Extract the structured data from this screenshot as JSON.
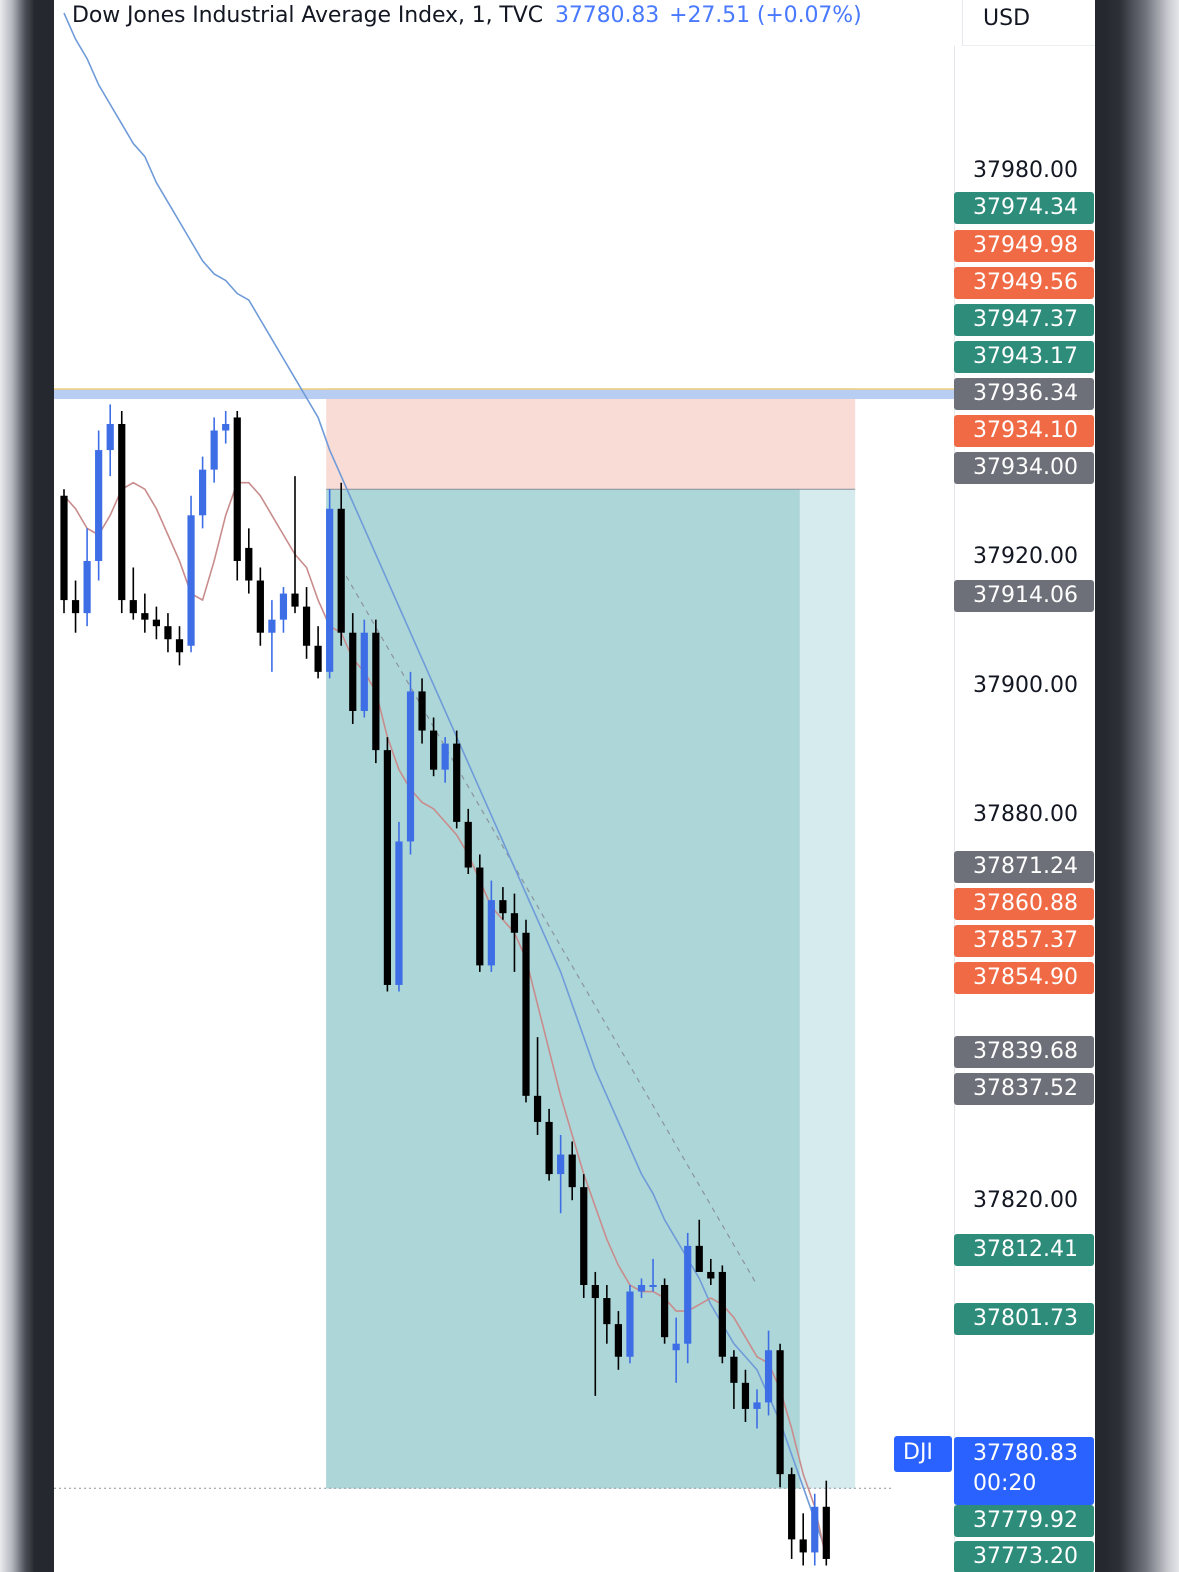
{
  "header": {
    "symbol_label": "Dow Jones Industrial Average Index, 1, TVC",
    "last_value": "37780.83",
    "change": "+27.51 (+0.07%)",
    "currency": "USD"
  },
  "colors": {
    "bull": "#3d6ee6",
    "bear": "#000000",
    "ema_fast": "#c98c8c",
    "ema_slow": "#6f9bd8",
    "stop_zone": "#f9dcd6",
    "target_zone": "#add6d8",
    "target_zone_light": "#d5ebee",
    "green_tag": "#2e8c7b",
    "orange_tag": "#f06b45",
    "gray_tag": "#6e7079",
    "blue_tag": "#2962ff"
  },
  "chart_data": {
    "type": "candlestick",
    "symbol": "DJI",
    "interval": "1",
    "ylim": [
      37768,
      38009
    ],
    "y_ticks": [
      "37980.00",
      "37920.00",
      "37900.00",
      "37880.00",
      "37820.00"
    ],
    "price_tags": [
      {
        "value": "37974.34",
        "kind": "green"
      },
      {
        "value": "37949.98",
        "kind": "orange"
      },
      {
        "value": "37949.56",
        "kind": "orange"
      },
      {
        "value": "37947.37",
        "kind": "green"
      },
      {
        "value": "37943.17",
        "kind": "green"
      },
      {
        "value": "37936.34",
        "kind": "gray"
      },
      {
        "value": "37934.10",
        "kind": "orange"
      },
      {
        "value": "37934.00",
        "kind": "gray"
      },
      {
        "value": "37914.06",
        "kind": "gray"
      },
      {
        "value": "37871.24",
        "kind": "gray"
      },
      {
        "value": "37860.88",
        "kind": "orange"
      },
      {
        "value": "37857.37",
        "kind": "orange"
      },
      {
        "value": "37854.90",
        "kind": "orange"
      },
      {
        "value": "37839.68",
        "kind": "gray"
      },
      {
        "value": "37837.52",
        "kind": "gray"
      },
      {
        "value": "37812.41",
        "kind": "green"
      },
      {
        "value": "37801.73",
        "kind": "green"
      },
      {
        "value": "37779.92",
        "kind": "green"
      },
      {
        "value": "37773.20",
        "kind": "green"
      }
    ],
    "last_price": {
      "badge": "DJI",
      "value": "37780.83",
      "countdown": "00:20"
    },
    "horizontal_line": 37948.6,
    "short_position": {
      "entry": 37934.0,
      "stop": 37949.5,
      "target": 37780.8
    },
    "candles": [
      {
        "o": 37933,
        "h": 37934,
        "l": 37915,
        "c": 37917
      },
      {
        "o": 37917,
        "h": 37920,
        "l": 37912,
        "c": 37915
      },
      {
        "o": 37915,
        "h": 37928,
        "l": 37913,
        "c": 37923
      },
      {
        "o": 37923,
        "h": 37943,
        "l": 37920,
        "c": 37940
      },
      {
        "o": 37940,
        "h": 37947,
        "l": 37936,
        "c": 37944
      },
      {
        "o": 37944,
        "h": 37946,
        "l": 37915,
        "c": 37917
      },
      {
        "o": 37917,
        "h": 37922,
        "l": 37914,
        "c": 37915
      },
      {
        "o": 37915,
        "h": 37918,
        "l": 37912,
        "c": 37914
      },
      {
        "o": 37914,
        "h": 37916,
        "l": 37911,
        "c": 37913
      },
      {
        "o": 37913,
        "h": 37915,
        "l": 37909,
        "c": 37911
      },
      {
        "o": 37911,
        "h": 37913,
        "l": 37907,
        "c": 37909
      },
      {
        "o": 37910,
        "h": 37933,
        "l": 37909,
        "c": 37930
      },
      {
        "o": 37930,
        "h": 37939,
        "l": 37928,
        "c": 37937
      },
      {
        "o": 37937,
        "h": 37945,
        "l": 37935,
        "c": 37943
      },
      {
        "o": 37943,
        "h": 37946,
        "l": 37941,
        "c": 37944
      },
      {
        "o": 37945,
        "h": 37946,
        "l": 37920,
        "c": 37923
      },
      {
        "o": 37925,
        "h": 37928,
        "l": 37918,
        "c": 37920
      },
      {
        "o": 37920,
        "h": 37922,
        "l": 37910,
        "c": 37912
      },
      {
        "o": 37912,
        "h": 37917,
        "l": 37906,
        "c": 37914
      },
      {
        "o": 37914,
        "h": 37919,
        "l": 37912,
        "c": 37918
      },
      {
        "o": 37918,
        "h": 37936,
        "l": 37915,
        "c": 37916
      },
      {
        "o": 37916,
        "h": 37919,
        "l": 37908,
        "c": 37910
      },
      {
        "o": 37910,
        "h": 37913,
        "l": 37905,
        "c": 37906
      },
      {
        "o": 37906,
        "h": 37934,
        "l": 37905,
        "c": 37931
      },
      {
        "o": 37931,
        "h": 37935,
        "l": 37910,
        "c": 37912
      },
      {
        "o": 37912,
        "h": 37915,
        "l": 37898,
        "c": 37900
      },
      {
        "o": 37900,
        "h": 37914,
        "l": 37899,
        "c": 37912
      },
      {
        "o": 37912,
        "h": 37914,
        "l": 37892,
        "c": 37894
      },
      {
        "o": 37894,
        "h": 37896,
        "l": 37857,
        "c": 37858
      },
      {
        "o": 37858,
        "h": 37883,
        "l": 37857,
        "c": 37880
      },
      {
        "o": 37880,
        "h": 37906,
        "l": 37878,
        "c": 37903
      },
      {
        "o": 37903,
        "h": 37905,
        "l": 37895,
        "c": 37897
      },
      {
        "o": 37897,
        "h": 37899,
        "l": 37890,
        "c": 37891
      },
      {
        "o": 37891,
        "h": 37896,
        "l": 37889,
        "c": 37895
      },
      {
        "o": 37895,
        "h": 37897,
        "l": 37882,
        "c": 37883
      },
      {
        "o": 37883,
        "h": 37885,
        "l": 37875,
        "c": 37876
      },
      {
        "o": 37876,
        "h": 37878,
        "l": 37860,
        "c": 37861
      },
      {
        "o": 37861,
        "h": 37874,
        "l": 37860,
        "c": 37871
      },
      {
        "o": 37871,
        "h": 37873,
        "l": 37868,
        "c": 37869
      },
      {
        "o": 37869,
        "h": 37872,
        "l": 37860,
        "c": 37866
      },
      {
        "o": 37866,
        "h": 37868,
        "l": 37840,
        "c": 37841
      },
      {
        "o": 37841,
        "h": 37850,
        "l": 37835,
        "c": 37837
      },
      {
        "o": 37837,
        "h": 37839,
        "l": 37828,
        "c": 37829
      },
      {
        "o": 37829,
        "h": 37835,
        "l": 37823,
        "c": 37832
      },
      {
        "o": 37832,
        "h": 37834,
        "l": 37825,
        "c": 37827
      },
      {
        "o": 37827,
        "h": 37829,
        "l": 37810,
        "c": 37812
      },
      {
        "o": 37812,
        "h": 37814,
        "l": 37795,
        "c": 37810
      },
      {
        "o": 37810,
        "h": 37812,
        "l": 37803,
        "c": 37806
      },
      {
        "o": 37806,
        "h": 37808,
        "l": 37799,
        "c": 37801
      },
      {
        "o": 37801,
        "h": 37812,
        "l": 37800,
        "c": 37811
      },
      {
        "o": 37811,
        "h": 37813,
        "l": 37810,
        "c": 37812
      },
      {
        "o": 37812,
        "h": 37816,
        "l": 37811,
        "c": 37812
      },
      {
        "o": 37812,
        "h": 37813,
        "l": 37803,
        "c": 37804
      },
      {
        "o": 37802,
        "h": 37807,
        "l": 37797,
        "c": 37803
      },
      {
        "o": 37803,
        "h": 37820,
        "l": 37800,
        "c": 37818
      },
      {
        "o": 37818,
        "h": 37822,
        "l": 37814,
        "c": 37814
      },
      {
        "o": 37814,
        "h": 37816,
        "l": 37812,
        "c": 37813
      },
      {
        "o": 37814,
        "h": 37815,
        "l": 37800,
        "c": 37801
      },
      {
        "o": 37801,
        "h": 37802,
        "l": 37793,
        "c": 37797
      },
      {
        "o": 37797,
        "h": 37799,
        "l": 37791,
        "c": 37793
      },
      {
        "o": 37793,
        "h": 37796,
        "l": 37790,
        "c": 37794
      },
      {
        "o": 37794,
        "h": 37805,
        "l": 37792,
        "c": 37802
      },
      {
        "o": 37802,
        "h": 37803,
        "l": 37781,
        "c": 37783
      },
      {
        "o": 37783,
        "h": 37784,
        "l": 37770,
        "c": 37773
      },
      {
        "o": 37773,
        "h": 37777,
        "l": 37769,
        "c": 37771
      },
      {
        "o": 37771,
        "h": 37780,
        "l": 37769,
        "c": 37778
      },
      {
        "o": 37778,
        "h": 37782,
        "l": 37769,
        "c": 37770
      }
    ],
    "ema_fast": [
      37933,
      37931,
      37928,
      37927,
      37930,
      37934,
      37935,
      37934,
      37931,
      37927,
      37923,
      37918,
      37917,
      37923,
      37930,
      37935,
      37935,
      37933,
      37930,
      37927,
      37924,
      37922,
      37917,
      37913,
      37912,
      37908,
      37906,
      37903,
      37896,
      37891,
      37888,
      37886,
      37885,
      37883,
      37881,
      37878,
      37874,
      37870,
      37868,
      37866,
      37862,
      37855,
      37848,
      37841,
      37835,
      37829,
      37824,
      37819,
      37815,
      37812,
      37811,
      37811,
      37810,
      37808,
      37808,
      37809,
      37810,
      37809,
      37807,
      37804,
      37801,
      37800,
      37796,
      37790,
      37783,
      37778,
      37770
    ],
    "ema_slow": [
      38007,
      38003,
      38000,
      37996,
      37993,
      37990,
      37987,
      37985,
      37981,
      37978,
      37975,
      37972,
      37969,
      37967,
      37966,
      37964,
      37963,
      37960,
      37957,
      37954,
      37951,
      37948,
      37945,
      37940,
      37936,
      37932,
      37928,
      37924,
      37920,
      37916,
      37912,
      37908,
      37904,
      37900,
      37896,
      37892,
      37888,
      37884,
      37880,
      37876,
      37872,
      37868,
      37864,
      37860,
      37855,
      37850,
      37845,
      37841,
      37837,
      37833,
      37829,
      37826,
      37822,
      37819,
      37816,
      37813,
      37809,
      37806,
      37803,
      37801,
      37799,
      37795,
      37791,
      37786,
      37781,
      37776,
      37771
    ]
  }
}
